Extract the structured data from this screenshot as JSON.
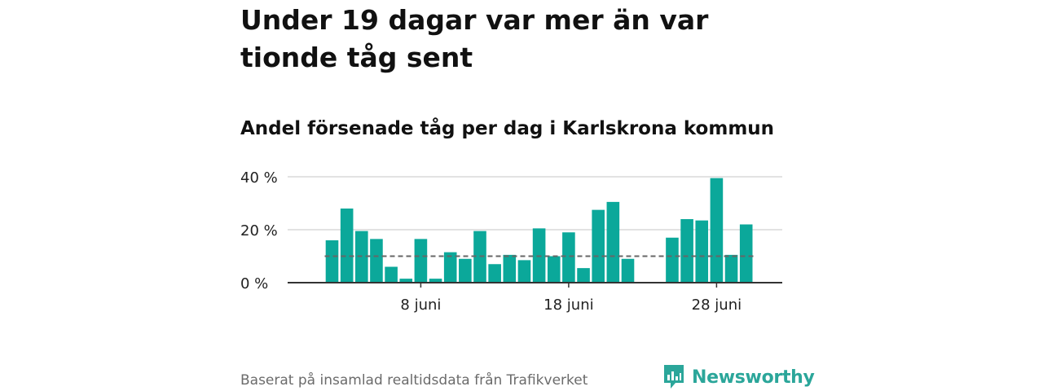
{
  "title": "Under 19 dagar var mer än var tionde tåg sent",
  "subtitle": "Andel försenade tåg per dag i Karlskrona kommun",
  "source": "Baserat på insamlad realtidsdata från Trafikverket",
  "brand": {
    "name": "Newsworthy",
    "icon": "newsworthy-logo-icon",
    "color": "#2ba69a"
  },
  "colors": {
    "bar": "#0ba89a",
    "grid": "#d9d9d9",
    "axis": "#333333",
    "reference": "#666666"
  },
  "chart_data": {
    "type": "bar",
    "ylabel": "",
    "xlabel": "",
    "ylim": [
      0,
      40
    ],
    "yticks": [
      {
        "value": 0,
        "label": "0 %"
      },
      {
        "value": 20,
        "label": "20 %"
      },
      {
        "value": 40,
        "label": "40 %"
      }
    ],
    "xticks": [
      {
        "index": 6,
        "label": "8 juni"
      },
      {
        "index": 16,
        "label": "18 juni"
      },
      {
        "index": 26,
        "label": "28 juni"
      }
    ],
    "categories": [
      "2 juni",
      "3 juni",
      "4 juni",
      "5 juni",
      "6 juni",
      "7 juni",
      "8 juni",
      "9 juni",
      "10 juni",
      "11 juni",
      "12 juni",
      "13 juni",
      "14 juni",
      "15 juni",
      "16 juni",
      "17 juni",
      "18 juni",
      "19 juni",
      "20 juni",
      "21 juni",
      "22 juni",
      "23 juni",
      "24 juni",
      "25 juni",
      "26 juni",
      "27 juni",
      "28 juni",
      "29 juni",
      "30 juni"
    ],
    "values": [
      16,
      28,
      19.5,
      16.5,
      6,
      1.5,
      16.5,
      1.5,
      11.5,
      9,
      19.5,
      7,
      10.5,
      8.5,
      20.5,
      10,
      19,
      5.5,
      27.5,
      30.5,
      9,
      null,
      null,
      17,
      24,
      23.5,
      39.5,
      10.5,
      22
    ],
    "reference_line": {
      "value": 10,
      "style": "dashed"
    },
    "grid": true,
    "legend": "none"
  }
}
